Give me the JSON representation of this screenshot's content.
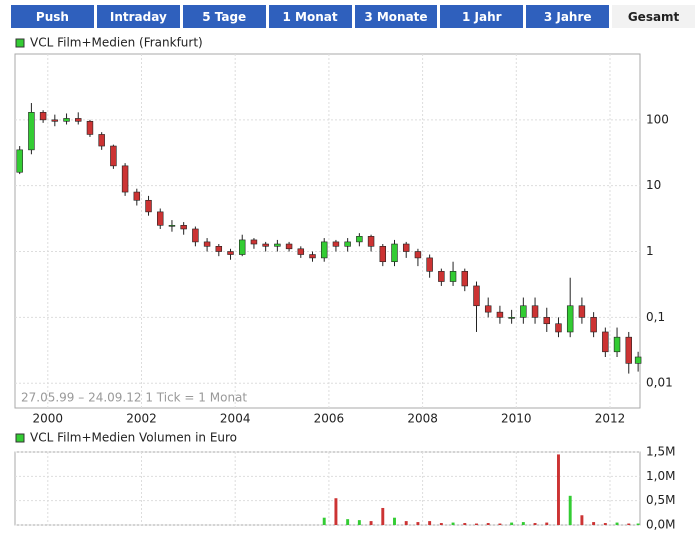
{
  "tabs": [
    "Push",
    "Intraday",
    "5 Tage",
    "1 Monat",
    "3 Monate",
    "1 Jahr",
    "3 Jahre",
    "Gesamt"
  ],
  "chart_data": [
    {
      "type": "candlestick",
      "title": "VCL Film+Medien (Frankfurt)",
      "annotation": "27.05.99 – 24.09.12   1 Tick = 1 Monat",
      "up_color": "#33cc33",
      "down_color": "#cc3333",
      "log_scale": true,
      "grid": true,
      "x": [
        1999.4,
        1999.65,
        1999.9,
        2000.15,
        2000.4,
        2000.65,
        2000.9,
        2001.15,
        2001.4,
        2001.65,
        2001.9,
        2002.15,
        2002.4,
        2002.65,
        2002.9,
        2003.15,
        2003.4,
        2003.65,
        2003.9,
        2004.15,
        2004.4,
        2004.65,
        2004.9,
        2005.15,
        2005.4,
        2005.65,
        2005.9,
        2006.15,
        2006.4,
        2006.65,
        2006.9,
        2007.15,
        2007.4,
        2007.65,
        2007.9,
        2008.15,
        2008.4,
        2008.65,
        2008.9,
        2009.15,
        2009.4,
        2009.65,
        2009.9,
        2010.15,
        2010.4,
        2010.65,
        2010.9,
        2011.15,
        2011.4,
        2011.65,
        2011.9,
        2012.15,
        2012.4,
        2012.6
      ],
      "open": [
        16,
        35,
        130,
        100,
        95,
        105,
        95,
        60,
        40,
        20,
        8,
        6,
        4,
        2.5,
        2.5,
        2.2,
        1.4,
        1.2,
        1.0,
        0.9,
        1.5,
        1.3,
        1.2,
        1.3,
        1.1,
        0.9,
        0.8,
        1.4,
        1.2,
        1.4,
        1.7,
        1.2,
        0.7,
        1.3,
        1.0,
        0.8,
        0.5,
        0.35,
        0.5,
        0.3,
        0.15,
        0.12,
        0.1,
        0.1,
        0.15,
        0.1,
        0.08,
        0.06,
        0.15,
        0.1,
        0.06,
        0.03,
        0.05,
        0.02
      ],
      "high": [
        40,
        180,
        140,
        120,
        125,
        130,
        100,
        65,
        42,
        22,
        9,
        7,
        4.5,
        3,
        2.8,
        2.4,
        1.6,
        1.3,
        1.1,
        1.8,
        1.6,
        1.4,
        1.5,
        1.4,
        1.2,
        1.0,
        1.6,
        1.5,
        1.6,
        1.9,
        1.8,
        1.3,
        1.5,
        1.4,
        1.1,
        0.9,
        0.55,
        0.7,
        0.55,
        0.35,
        0.2,
        0.15,
        0.13,
        0.2,
        0.2,
        0.14,
        0.1,
        0.4,
        0.2,
        0.12,
        0.07,
        0.07,
        0.06,
        0.03
      ],
      "low": [
        15,
        30,
        90,
        80,
        85,
        85,
        55,
        35,
        18,
        7,
        5,
        3.5,
        2.2,
        2.0,
        1.8,
        1.2,
        1.0,
        0.85,
        0.75,
        0.85,
        1.1,
        1.0,
        1.0,
        1.0,
        0.8,
        0.7,
        0.7,
        1.0,
        1.0,
        1.2,
        1.0,
        0.6,
        0.6,
        0.8,
        0.6,
        0.4,
        0.3,
        0.3,
        0.25,
        0.06,
        0.1,
        0.08,
        0.08,
        0.08,
        0.08,
        0.06,
        0.05,
        0.05,
        0.08,
        0.05,
        0.025,
        0.025,
        0.014,
        0.015
      ],
      "close": [
        35,
        130,
        100,
        95,
        105,
        95,
        60,
        40,
        20,
        8,
        6,
        4,
        2.5,
        2.5,
        2.2,
        1.4,
        1.2,
        1.0,
        0.9,
        1.5,
        1.3,
        1.2,
        1.3,
        1.1,
        0.9,
        0.8,
        1.4,
        1.2,
        1.4,
        1.7,
        1.2,
        0.7,
        1.3,
        1.0,
        0.8,
        0.5,
        0.35,
        0.5,
        0.3,
        0.15,
        0.12,
        0.1,
        0.1,
        0.15,
        0.1,
        0.08,
        0.06,
        0.15,
        0.1,
        0.06,
        0.03,
        0.05,
        0.02,
        0.025
      ],
      "xlim": [
        1999.3,
        2012.64
      ],
      "xticks": [
        2000,
        2002,
        2004,
        2006,
        2008,
        2010,
        2012
      ],
      "ylim": [
        0.0042,
        1000
      ],
      "yticks": [
        {
          "value": 0.01,
          "label": "0,01"
        },
        {
          "value": 0.1,
          "label": "0,1"
        },
        1,
        10,
        100
      ]
    },
    {
      "type": "bar",
      "title": "VCL Film+Medien Volumen in Euro",
      "values": [
        0,
        0,
        0,
        0,
        0,
        0,
        0,
        0,
        0,
        0,
        0,
        0,
        0,
        0,
        0,
        0,
        0,
        0,
        0,
        0,
        0,
        0,
        0,
        0,
        0,
        0,
        150000,
        550000,
        120000,
        100000,
        80000,
        350000,
        150000,
        80000,
        60000,
        80000,
        40000,
        50000,
        40000,
        30000,
        40000,
        30000,
        50000,
        60000,
        40000,
        50000,
        1450000,
        600000,
        200000,
        60000,
        40000,
        50000,
        30000,
        30000
      ],
      "ylim": [
        0,
        1500000
      ],
      "yticks": [
        {
          "value": 0,
          "label": "0,0M"
        },
        {
          "value": 500000,
          "label": "0,5M"
        },
        {
          "value": 1000000,
          "label": "1,0M"
        },
        {
          "value": 1500000,
          "label": "1,5M"
        }
      ]
    }
  ]
}
